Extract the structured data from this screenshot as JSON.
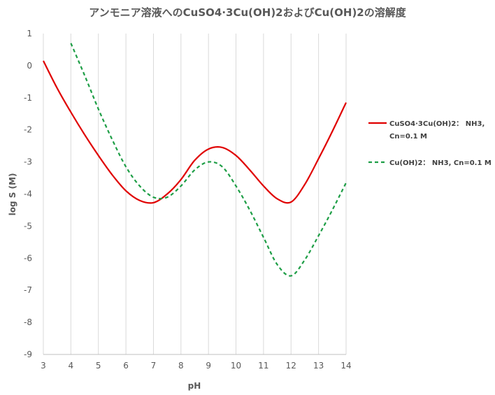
{
  "chart_data": {
    "type": "line",
    "title": "アンモニア溶液へのCuSO4·3Cu(OH)2およびCu(OH)2の溶解度",
    "xlabel": "pH",
    "ylabel": "log S (M)",
    "xlim": [
      3,
      14
    ],
    "ylim": [
      -9,
      1
    ],
    "xticks": [
      3,
      4,
      5,
      6,
      7,
      8,
      9,
      10,
      11,
      12,
      13,
      14
    ],
    "yticks": [
      1,
      0,
      -1,
      -2,
      -3,
      -4,
      -5,
      -6,
      -7,
      -8,
      -9
    ],
    "grid": "vertical",
    "legend_position": "right",
    "series": [
      {
        "name": "CuSO4·3Cu(OH)2： NH3, Cn=0.1 M",
        "legend_lines": [
          "CuSO4·3Cu(OH)2： NH3,",
          "Cn=0.1 M"
        ],
        "color": "#e00000",
        "style": "solid",
        "x": [
          3,
          3.5,
          4,
          4.5,
          5,
          5.5,
          6,
          6.5,
          7,
          7.5,
          8,
          8.5,
          9,
          9.5,
          10,
          10.5,
          11,
          11.5,
          12,
          12.5,
          13,
          13.5,
          14
        ],
        "y": [
          0.15,
          -0.7,
          -1.45,
          -2.15,
          -2.8,
          -3.4,
          -3.9,
          -4.2,
          -4.27,
          -4.0,
          -3.55,
          -2.95,
          -2.6,
          -2.55,
          -2.8,
          -3.25,
          -3.75,
          -4.15,
          -4.25,
          -3.7,
          -2.9,
          -2.05,
          -1.15
        ]
      },
      {
        "name": "Cu(OH)2： NH3, Cn=0.1 M",
        "legend_lines": [
          "Cu(OH)2： NH3, Cn=0.1 M"
        ],
        "color": "#1e9e46",
        "style": "dashed",
        "x": [
          4,
          4.5,
          5,
          5.5,
          6,
          6.5,
          7,
          7.5,
          8,
          8.5,
          9,
          9.5,
          10,
          10.5,
          11,
          11.5,
          12,
          12.5,
          13,
          13.5,
          14
        ],
        "y": [
          0.7,
          -0.3,
          -1.35,
          -2.3,
          -3.15,
          -3.75,
          -4.1,
          -4.1,
          -3.75,
          -3.25,
          -3.0,
          -3.15,
          -3.75,
          -4.5,
          -5.35,
          -6.2,
          -6.55,
          -6.05,
          -5.3,
          -4.5,
          -3.65
        ]
      }
    ]
  }
}
